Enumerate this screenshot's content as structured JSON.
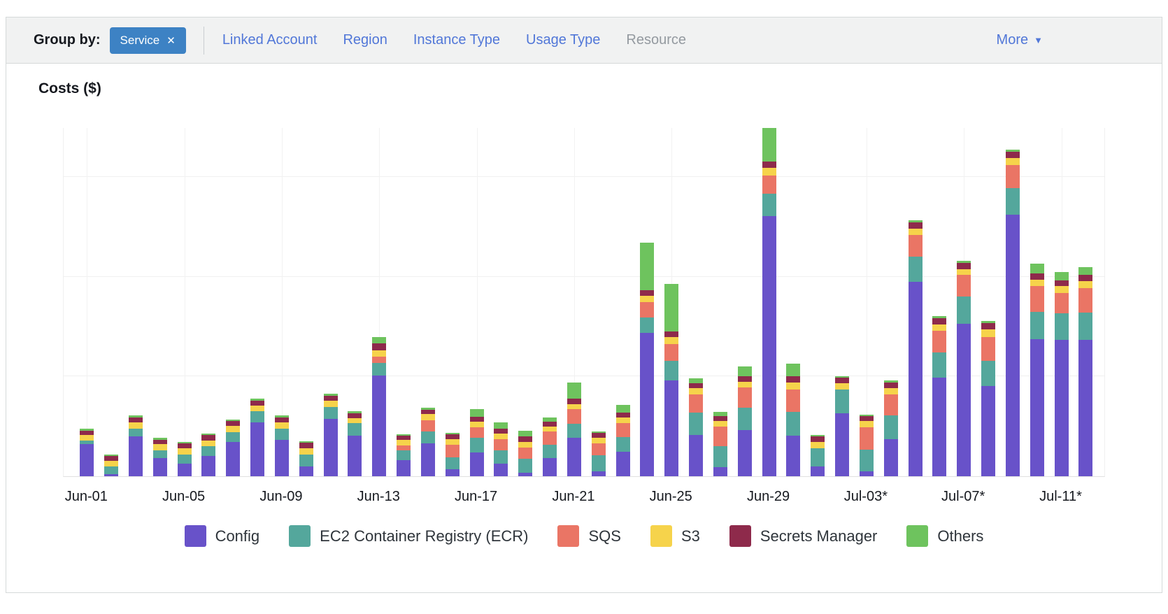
{
  "filter_bar": {
    "group_by_label": "Group by:",
    "active_filter": {
      "label": "Service",
      "remove_icon": "✕"
    },
    "links": [
      {
        "label": "Linked Account",
        "enabled": true
      },
      {
        "label": "Region",
        "enabled": true
      },
      {
        "label": "Instance Type",
        "enabled": true
      },
      {
        "label": "Usage Type",
        "enabled": true
      },
      {
        "label": "Resource",
        "enabled": false
      }
    ],
    "more_label": "More",
    "more_icon": "▼"
  },
  "chart": {
    "title": "Costs ($)"
  },
  "chart_data": {
    "type": "bar",
    "stacked": true,
    "title": "Costs ($)",
    "xlabel": "",
    "ylabel": "Costs ($)",
    "y_axis_labels_shown": false,
    "ylim": [
      0,
      3.5
    ],
    "y_gridlines": [
      1,
      2,
      3
    ],
    "grid": true,
    "legend_position": "bottom",
    "categories": [
      "Jun-01",
      "Jun-02",
      "Jun-03",
      "Jun-04",
      "Jun-05",
      "Jun-06",
      "Jun-07",
      "Jun-08",
      "Jun-09",
      "Jun-10",
      "Jun-11",
      "Jun-12",
      "Jun-13",
      "Jun-14",
      "Jun-15",
      "Jun-16",
      "Jun-17",
      "Jun-18",
      "Jun-19",
      "Jun-20",
      "Jun-21",
      "Jun-22",
      "Jun-23",
      "Jun-24",
      "Jun-25",
      "Jun-26",
      "Jun-27",
      "Jun-28",
      "Jun-29",
      "Jun-30",
      "Jul-01",
      "Jul-02",
      "Jul-03",
      "Jul-04",
      "Jul-05",
      "Jul-06",
      "Jul-07",
      "Jul-08",
      "Jul-09",
      "Jul-10",
      "Jul-11",
      "Jul-12"
    ],
    "x_ticks": [
      {
        "index": 0,
        "label": "Jun-01"
      },
      {
        "index": 4,
        "label": "Jun-05"
      },
      {
        "index": 8,
        "label": "Jun-09"
      },
      {
        "index": 12,
        "label": "Jun-13"
      },
      {
        "index": 16,
        "label": "Jun-17"
      },
      {
        "index": 20,
        "label": "Jun-21"
      },
      {
        "index": 24,
        "label": "Jun-25"
      },
      {
        "index": 28,
        "label": "Jun-29"
      },
      {
        "index": 32,
        "label": "Jul-03*"
      },
      {
        "index": 36,
        "label": "Jul-07*"
      },
      {
        "index": 40,
        "label": "Jul-11*"
      }
    ],
    "series": [
      {
        "name": "Config",
        "color": "#6852c9",
        "values": [
          0.32,
          0.021,
          0.397,
          0.18,
          0.126,
          0.203,
          0.341,
          0.537,
          0.364,
          0.1,
          0.575,
          0.404,
          1.011,
          0.159,
          0.327,
          0.07,
          0.238,
          0.126,
          0.033,
          0.18,
          0.383,
          0.047,
          0.243,
          1.434,
          0.958,
          0.416,
          0.093,
          0.463,
          2.607,
          0.404,
          0.1,
          0.631,
          0.047,
          0.374,
          1.95,
          0.986,
          1.53,
          0.904,
          2.621,
          1.371,
          1.367,
          1.367
        ]
      },
      {
        "name": "EC2 Container Registry (ECR)",
        "color": "#54a79c",
        "values": [
          0.04,
          0.077,
          0.079,
          0.082,
          0.093,
          0.1,
          0.103,
          0.112,
          0.11,
          0.117,
          0.117,
          0.128,
          0.124,
          0.1,
          0.124,
          0.117,
          0.145,
          0.135,
          0.14,
          0.133,
          0.14,
          0.163,
          0.147,
          0.154,
          0.201,
          0.222,
          0.205,
          0.222,
          0.224,
          0.24,
          0.18,
          0.24,
          0.217,
          0.238,
          0.25,
          0.257,
          0.268,
          0.252,
          0.264,
          0.275,
          0.268,
          0.275
        ]
      },
      {
        "name": "SQS",
        "color": "#ea7565",
        "values": [
          0,
          0,
          0,
          0,
          0,
          0,
          0,
          0,
          0,
          0,
          0,
          0,
          0.063,
          0.051,
          0.11,
          0.131,
          0.107,
          0.112,
          0.117,
          0.135,
          0.147,
          0.121,
          0.14,
          0.156,
          0.168,
          0.18,
          0.198,
          0.203,
          0.182,
          0.226,
          0,
          0,
          0.226,
          0.21,
          0.217,
          0.217,
          0.222,
          0.238,
          0.233,
          0.261,
          0.198,
          0.243
        ]
      },
      {
        "name": "S3",
        "color": "#f6d34b",
        "values": [
          0.054,
          0.056,
          0.061,
          0.058,
          0.061,
          0.056,
          0.061,
          0.058,
          0.063,
          0.063,
          0.063,
          0.051,
          0.063,
          0.054,
          0.061,
          0.056,
          0.056,
          0.056,
          0.054,
          0.051,
          0.054,
          0.058,
          0.058,
          0.063,
          0.065,
          0.065,
          0.058,
          0.061,
          0.077,
          0.07,
          0.061,
          0.063,
          0.065,
          0.061,
          0.063,
          0.063,
          0.058,
          0.077,
          0.07,
          0.065,
          0.07,
          0.07
        ]
      },
      {
        "name": "Secrets Manager",
        "color": "#8e2a4b",
        "values": [
          0.044,
          0.047,
          0.051,
          0.047,
          0.047,
          0.054,
          0.047,
          0.051,
          0.054,
          0.054,
          0.054,
          0.047,
          0.07,
          0.044,
          0.047,
          0.047,
          0.047,
          0.047,
          0.054,
          0.047,
          0.051,
          0.047,
          0.051,
          0.054,
          0.056,
          0.051,
          0.051,
          0.056,
          0.063,
          0.063,
          0.056,
          0.054,
          0.051,
          0.056,
          0.061,
          0.061,
          0.058,
          0.063,
          0.063,
          0.058,
          0.058,
          0.061
        ]
      },
      {
        "name": "Others",
        "color": "#6ec35e",
        "values": [
          0.016,
          0.019,
          0.019,
          0.016,
          0.016,
          0.016,
          0.016,
          0.019,
          0.016,
          0.016,
          0.016,
          0.019,
          0.061,
          0.012,
          0.021,
          0.014,
          0.082,
          0.065,
          0.056,
          0.042,
          0.163,
          0.016,
          0.077,
          0.477,
          0.481,
          0.047,
          0.042,
          0.093,
          0.336,
          0.124,
          0.019,
          0.016,
          0.014,
          0.023,
          0.023,
          0.023,
          0.023,
          0.023,
          0.023,
          0.098,
          0.086,
          0.079
        ]
      }
    ]
  }
}
